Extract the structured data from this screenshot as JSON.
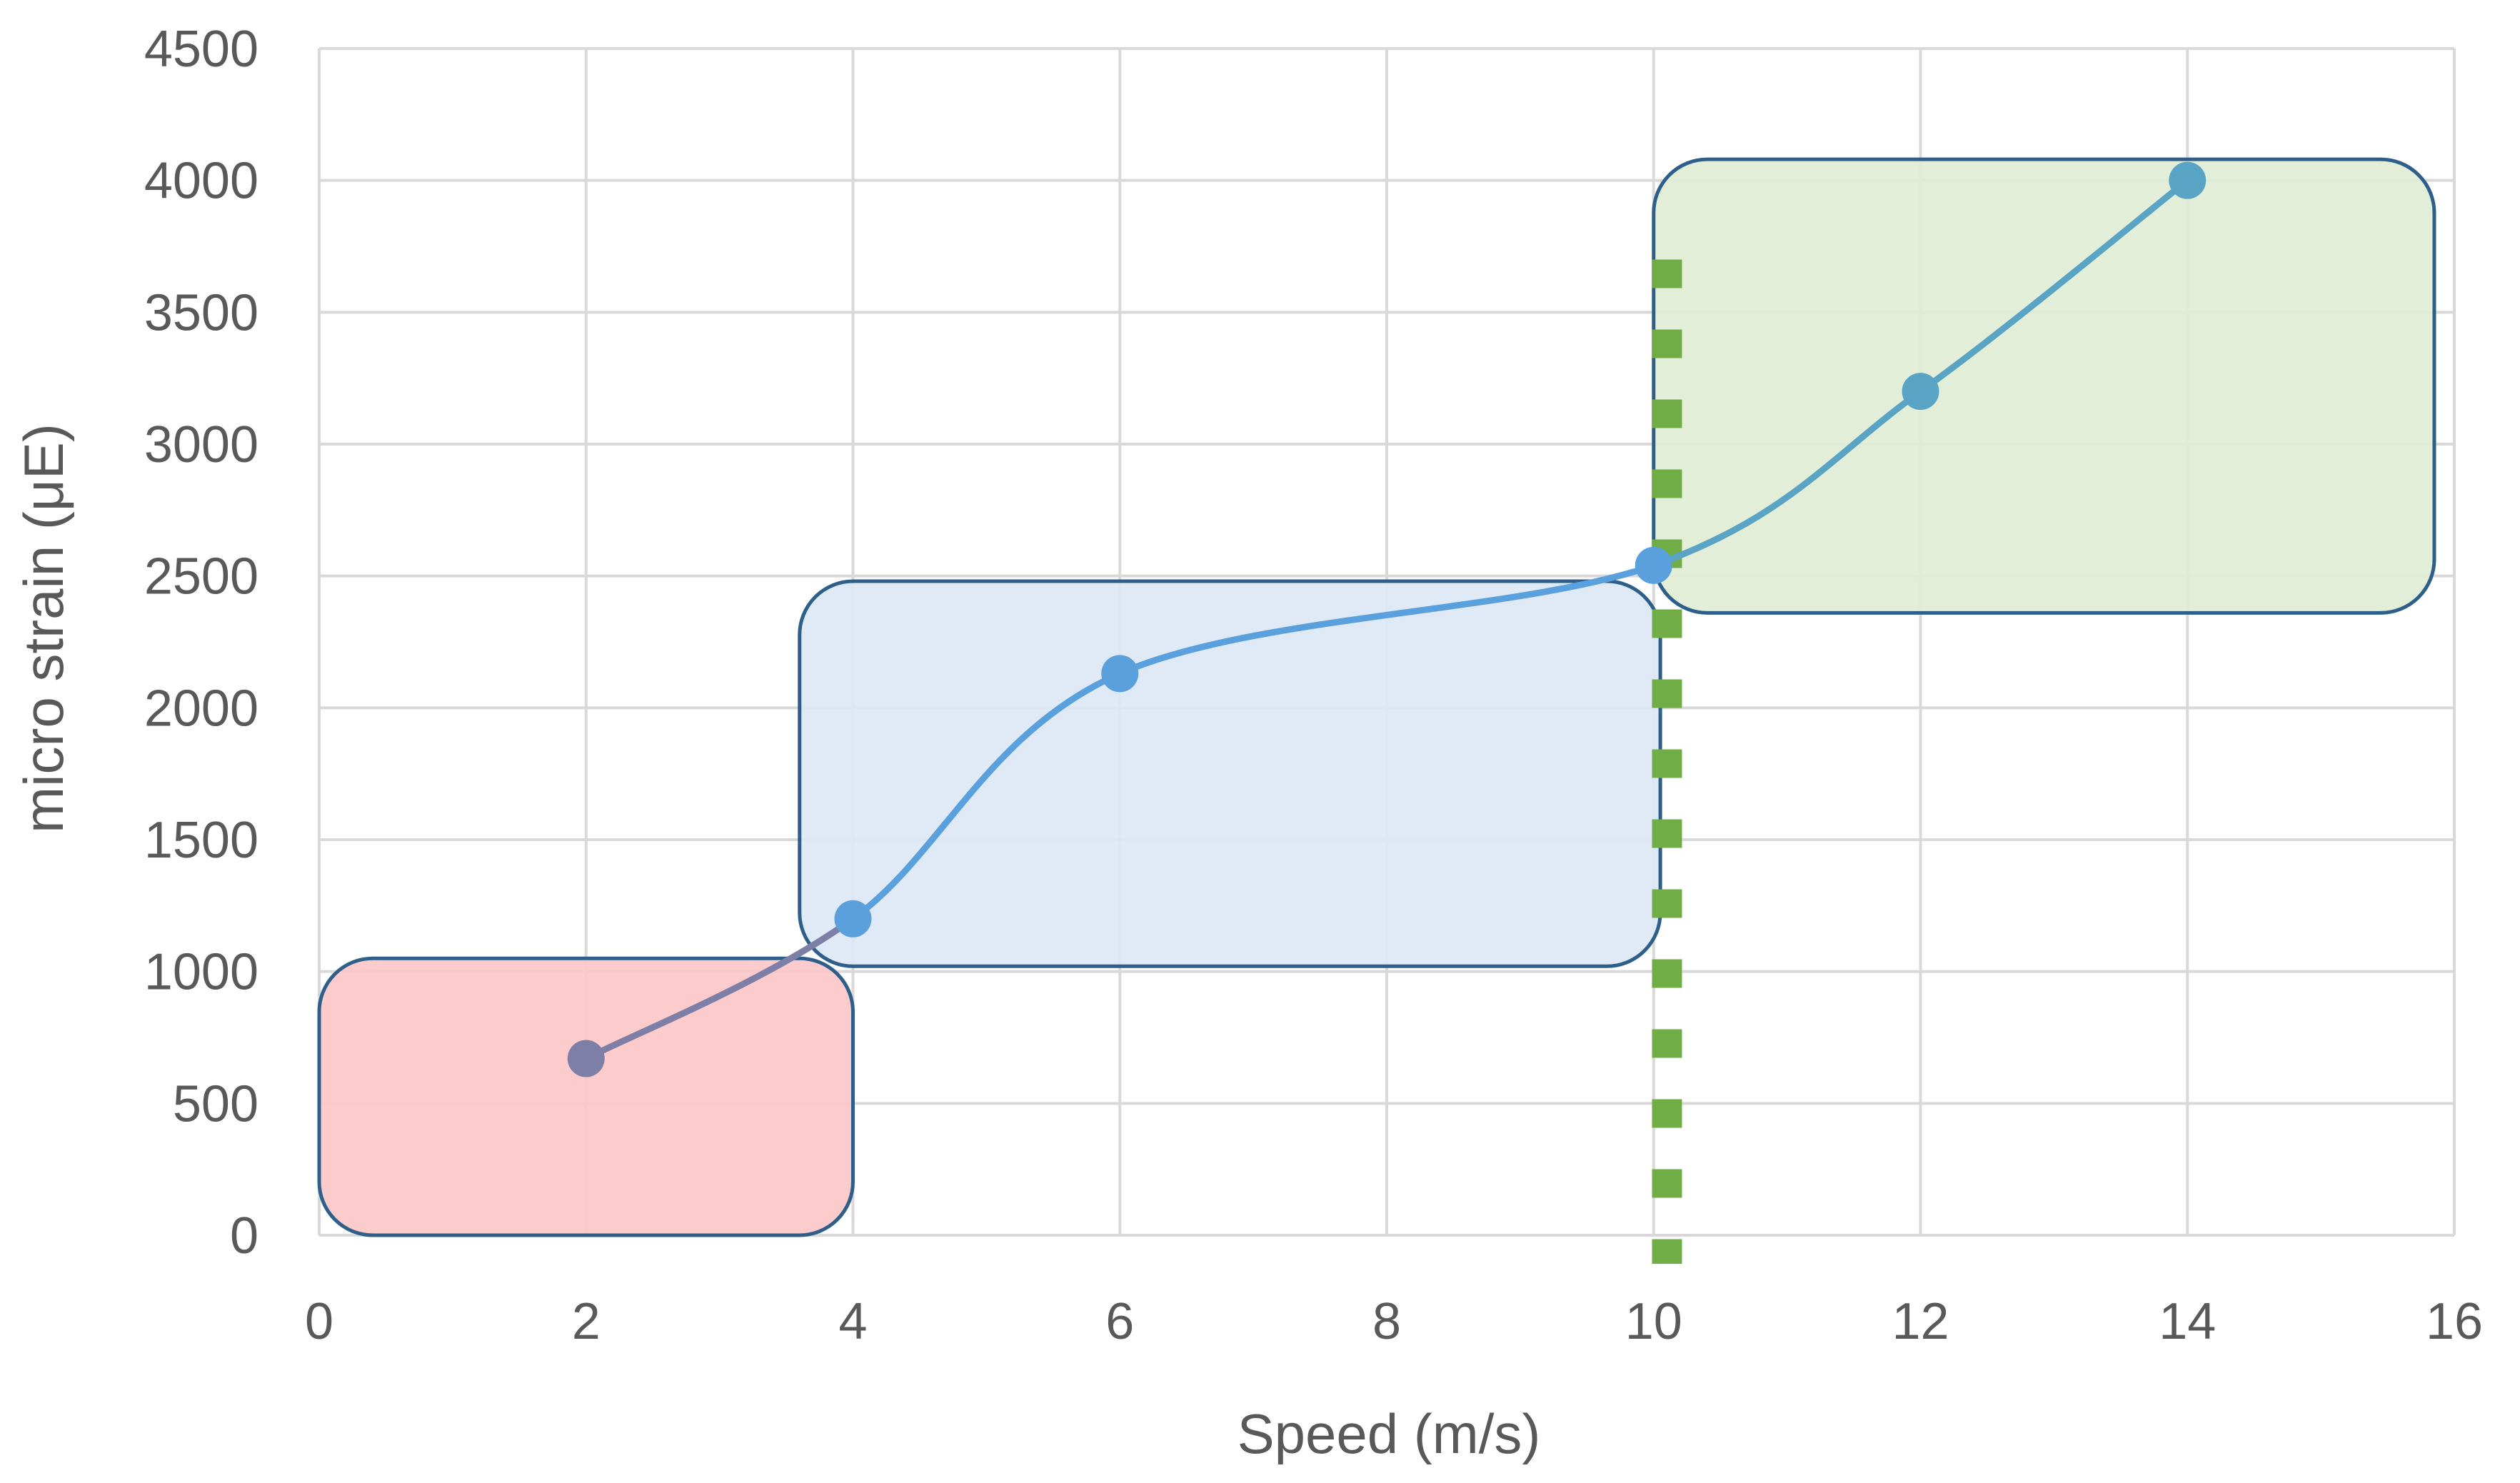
{
  "chart_data": {
    "type": "line",
    "xlabel": "Speed (m/s)",
    "ylabel": "micro strain (μE)",
    "xlim": [
      0,
      16
    ],
    "ylim": [
      0,
      4500
    ],
    "xticks": [
      0,
      2,
      4,
      6,
      8,
      10,
      12,
      14,
      16
    ],
    "yticks": [
      0,
      500,
      1000,
      1500,
      2000,
      2500,
      3000,
      3500,
      4000,
      4500
    ],
    "xtick_labels": [
      "0",
      "2",
      "4",
      "6",
      "8",
      "10",
      "12",
      "14",
      "16"
    ],
    "ytick_labels": [
      "0",
      "500",
      "1000",
      "1500",
      "2000",
      "2500",
      "3000",
      "3500",
      "4000",
      "4500"
    ],
    "grid": true,
    "smooth": true,
    "series": [
      {
        "x": [
          2,
          4,
          6,
          10,
          12,
          14
        ],
        "y": [
          670,
          1200,
          2130,
          2540,
          3200,
          4000
        ]
      }
    ],
    "regions": [
      {
        "x": [
          0,
          4
        ],
        "y": [
          0,
          1050
        ],
        "fill": "#fcc7c7",
        "stroke": "#2e5f8a"
      },
      {
        "x": [
          3.6,
          10.05
        ],
        "y": [
          1020,
          2480
        ],
        "fill": "#dce8f5",
        "stroke": "#2e5f8a"
      },
      {
        "x": [
          10,
          15.85
        ],
        "y": [
          2360,
          4080
        ],
        "fill": "#e0edd5",
        "stroke": "#2e5f8a"
      }
    ],
    "vline": {
      "x": 10.1,
      "style": "dotted",
      "color": "#71ad47"
    },
    "colors": {
      "segment_low": "#7e7fa7",
      "segment_mid": "#5aa0dc",
      "segment_high": "#59a4c4",
      "grid": "#d9d9d9",
      "axis_text": "#595959"
    }
  }
}
